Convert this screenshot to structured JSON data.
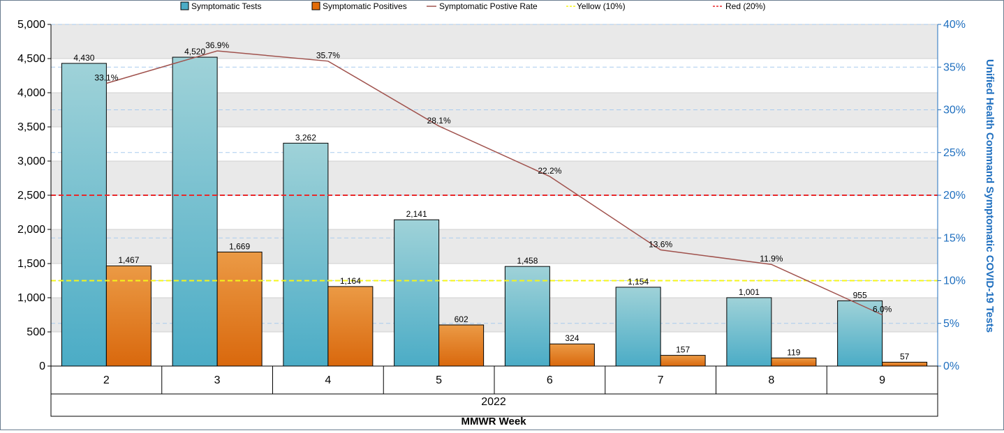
{
  "chart_data": {
    "type": "bar",
    "categories": [
      "2",
      "3",
      "4",
      "5",
      "6",
      "7",
      "8",
      "9"
    ],
    "group_label": "2022",
    "xlabel": "MMWR Week",
    "ylabel_right": "Unified Health Command Symptomatic COVID-19 Tests",
    "ylim": [
      0,
      5000
    ],
    "y2lim": [
      0,
      40
    ],
    "y_ticks": [
      "0",
      "500",
      "1,000",
      "1,500",
      "2,000",
      "2,500",
      "3,000",
      "3,500",
      "4,000",
      "4,500",
      "5,000"
    ],
    "y2_ticks": [
      "0%",
      "5%",
      "10%",
      "15%",
      "20%",
      "25%",
      "30%",
      "35%",
      "40%"
    ],
    "series": [
      {
        "name": "Symptomatic Tests",
        "color": "#4bacc6",
        "values": [
          4430,
          4520,
          3262,
          2141,
          1458,
          1154,
          1001,
          955
        ],
        "labels": [
          "4,430",
          "4,520",
          "3,262",
          "2,141",
          "1,458",
          "1,154",
          "1,001",
          "955"
        ]
      },
      {
        "name": "Symptomatic Positives",
        "color": "#e36c09",
        "values": [
          1467,
          1669,
          1164,
          602,
          324,
          157,
          119,
          57
        ],
        "labels": [
          "1,467",
          "1,669",
          "1,164",
          "602",
          "324",
          "157",
          "119",
          "57"
        ]
      }
    ],
    "line_series": {
      "name": "Symptomatic Postive Rate",
      "color": "#a0524d",
      "values": [
        33.1,
        36.9,
        35.7,
        28.1,
        22.2,
        13.6,
        11.9,
        6.0
      ],
      "labels": [
        "33.1%",
        "36.9%",
        "35.7%",
        "28.1%",
        "22.2%",
        "13.6%",
        "11.9%",
        "6.0%"
      ]
    },
    "reference_lines": [
      {
        "name": "Yellow (10%)",
        "value": 10,
        "color": "#f5f51a"
      },
      {
        "name": "Red (20%)",
        "value": 20,
        "color": "#e8292b"
      }
    ],
    "legend_position": "top",
    "grid": true
  }
}
